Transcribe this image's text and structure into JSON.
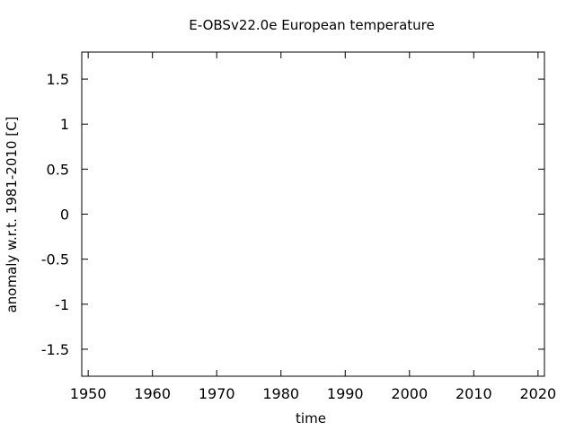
{
  "chart_data": {
    "type": "line",
    "title": "E-OBSv22.0e European temperature",
    "xlabel": "time",
    "ylabel": "anomaly w.r.t. 1981-2010 [C]",
    "xlim": [
      1949,
      2021
    ],
    "ylim": [
      -1.8,
      1.8
    ],
    "x_ticks": [
      1950,
      1960,
      1970,
      1980,
      1990,
      2000,
      2010,
      2020
    ],
    "x_tick_labels": [
      "1950",
      "1960",
      "1970",
      "1980",
      "1990",
      "2000",
      "2010",
      "2020"
    ],
    "y_ticks": [
      1.5,
      1,
      0.5,
      0,
      -0.5,
      -1,
      -1.5
    ],
    "y_tick_labels": [
      "1.5",
      "1",
      "0.5",
      "0",
      "-0.5",
      "-1",
      "-1.5"
    ],
    "grid": false,
    "series": []
  }
}
